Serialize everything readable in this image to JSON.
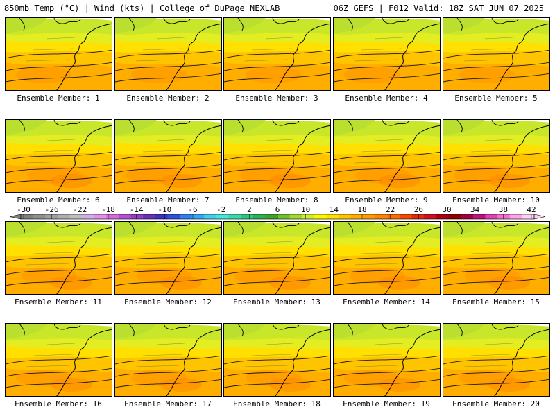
{
  "header": {
    "left_title": "850mb Temp (°C) | Wind (kts) | College of DuPage NEXLAB",
    "right_title": "06Z GEFS | F012 Valid: 18Z SAT JUN 07 2025"
  },
  "members": [
    {
      "label": "Ensemble Member: 1"
    },
    {
      "label": "Ensemble Member: 2"
    },
    {
      "label": "Ensemble Member: 3"
    },
    {
      "label": "Ensemble Member: 4"
    },
    {
      "label": "Ensemble Member: 5"
    },
    {
      "label": "Ensemble Member: 6"
    },
    {
      "label": "Ensemble Member: 7"
    },
    {
      "label": "Ensemble Member: 8"
    },
    {
      "label": "Ensemble Member: 9"
    },
    {
      "label": "Ensemble Member: 10"
    },
    {
      "label": "Ensemble Member: 11"
    },
    {
      "label": "Ensemble Member: 12"
    },
    {
      "label": "Ensemble Member: 13"
    },
    {
      "label": "Ensemble Member: 14"
    },
    {
      "label": "Ensemble Member: 15"
    },
    {
      "label": "Ensemble Member: 16"
    },
    {
      "label": "Ensemble Member: 17"
    },
    {
      "label": "Ensemble Member: 18"
    },
    {
      "label": "Ensemble Member: 19"
    },
    {
      "label": "Ensemble Member: 20"
    }
  ],
  "colorbar": {
    "tick_labels": [
      "-30",
      "-26",
      "-22",
      "-18",
      "-14",
      "-10",
      "-6",
      "-2",
      "2",
      "6",
      "10",
      "14",
      "18",
      "22",
      "26",
      "30",
      "34",
      "38",
      "42"
    ],
    "colors": [
      "#7f7f7f",
      "#8e8e8e",
      "#9e9e9e",
      "#aeaeae",
      "#bebebe",
      "#d0b0e6",
      "#e58fe6",
      "#d96ad9",
      "#b44fd0",
      "#8f3fc2",
      "#6a2fb3",
      "#3f2fc2",
      "#2f4fe0",
      "#2f7ff0",
      "#35a7f5",
      "#3fd0f0",
      "#43e6d8",
      "#38d8a8",
      "#2fc780",
      "#2fb050",
      "#3fa02f",
      "#6fbf2f",
      "#9fd92f",
      "#cfee2f",
      "#f8f800",
      "#ffe000",
      "#ffc400",
      "#ffae00",
      "#ff9a00",
      "#ff8500",
      "#ff6a00",
      "#f04a00",
      "#e02a10",
      "#d01020",
      "#b00010",
      "#900000",
      "#a00040",
      "#c0107a",
      "#e040b0",
      "#f070d0",
      "#ffa0e8",
      "#ffd0f0"
    ]
  }
}
